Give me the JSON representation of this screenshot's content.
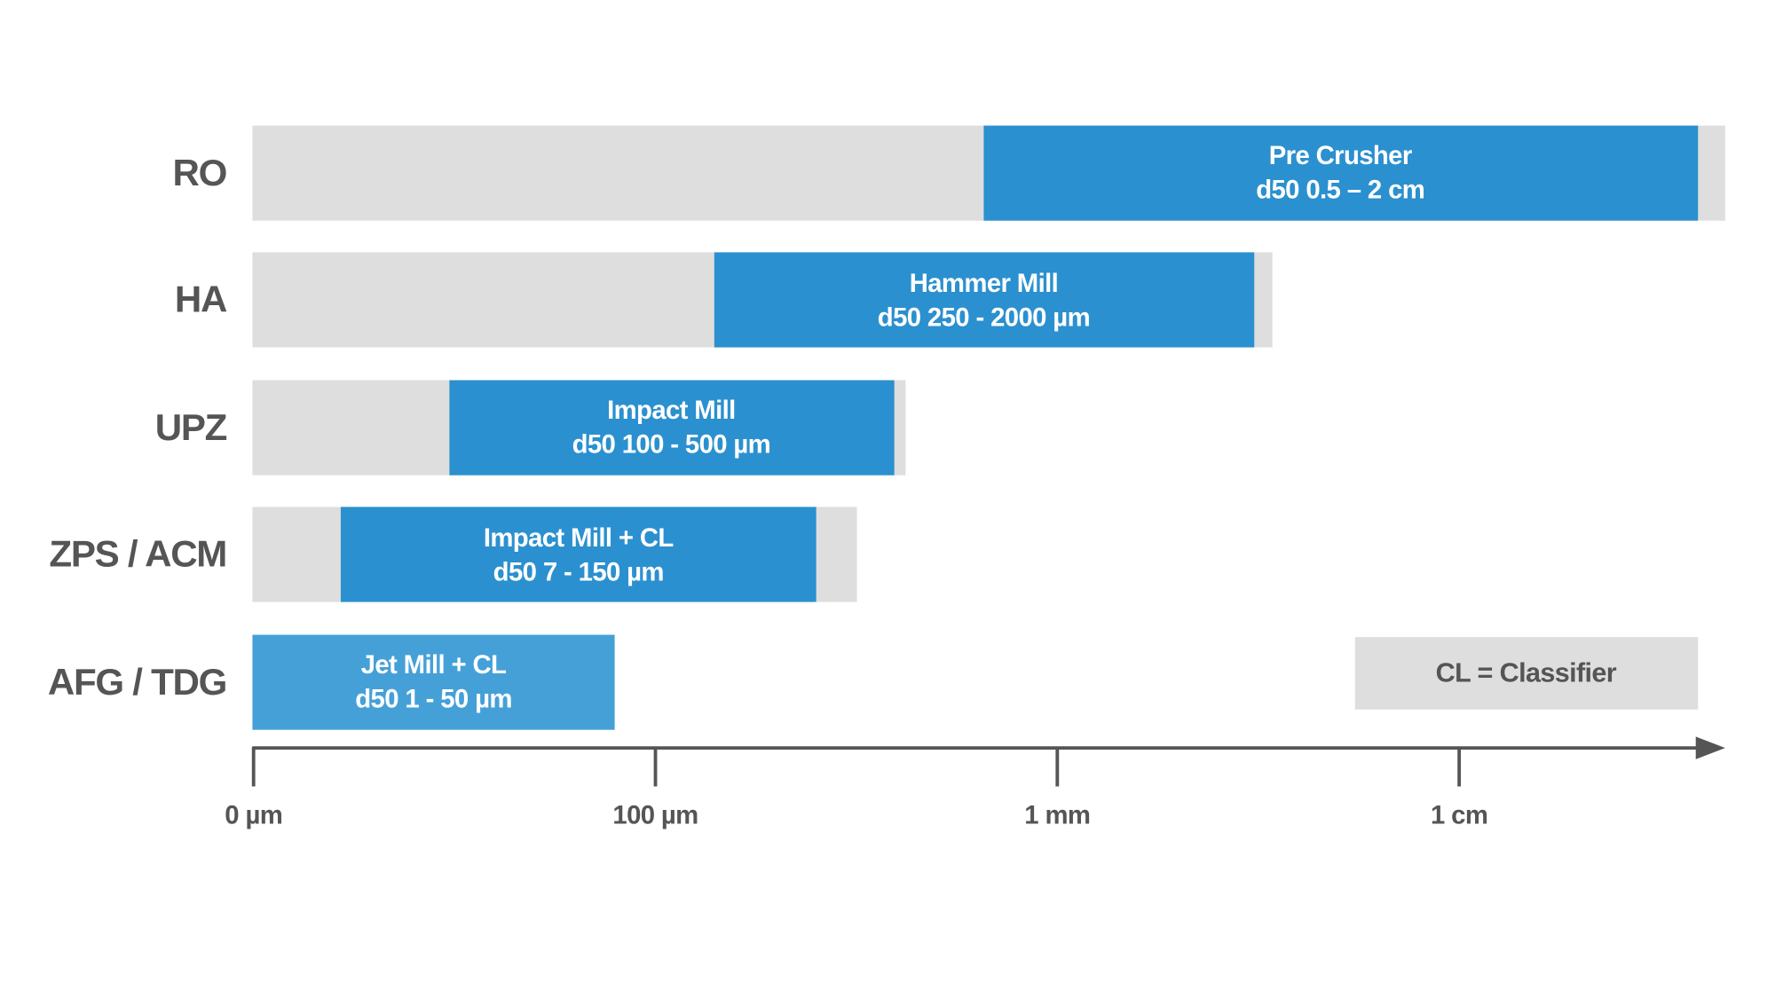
{
  "rows": [
    {
      "label": "RO",
      "title": "Pre Crusher",
      "range": "d50 0.5 – 2 cm"
    },
    {
      "label": "HA",
      "title": "Hammer Mill",
      "range": "d50 250 - 2000 µm"
    },
    {
      "label": "UPZ",
      "title": "Impact Mill",
      "range": "d50 100 - 500 µm"
    },
    {
      "label": "ZPS / ACM",
      "title": "Impact Mill + CL",
      "range": "d50 7 - 150 µm"
    },
    {
      "label": "AFG / TDG",
      "title": "Jet Mill + CL",
      "range": "d50 1 - 50 µm"
    }
  ],
  "axis": {
    "ticks": [
      "0 µm",
      "100 µm",
      "1 mm",
      "1 cm"
    ]
  },
  "legend": "CL = Classifier"
}
